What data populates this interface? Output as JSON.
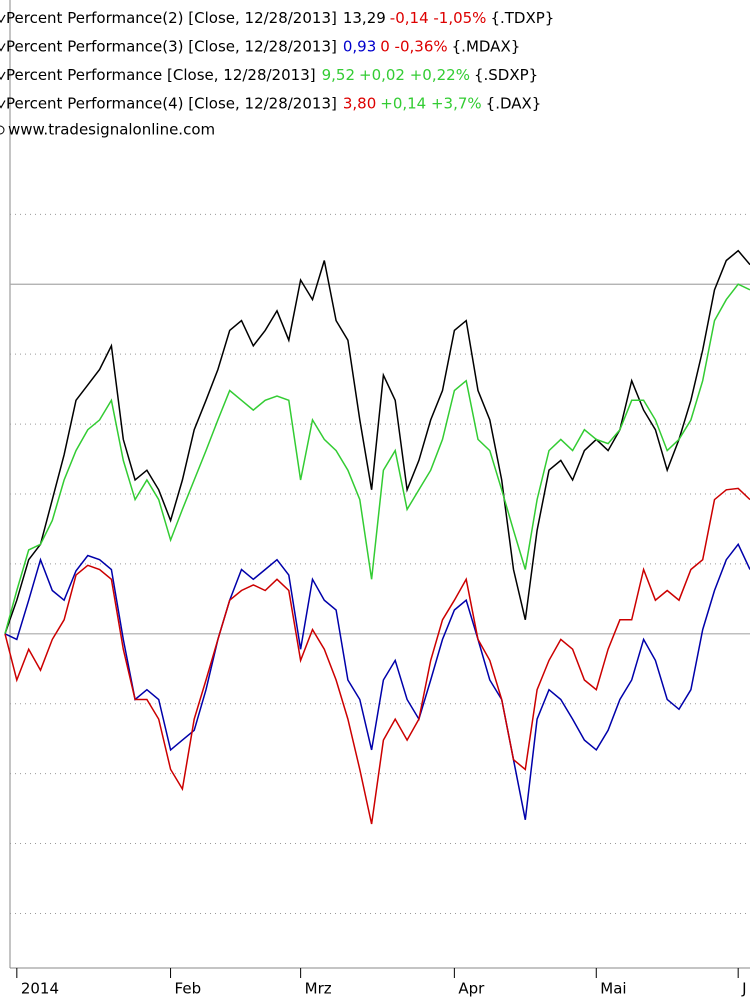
{
  "chart_data": {
    "type": "line",
    "categories": [
      null,
      "2014",
      null,
      null,
      null,
      null,
      null,
      null,
      null,
      null,
      null,
      null,
      null,
      null,
      "Feb",
      null,
      null,
      null,
      null,
      null,
      null,
      null,
      null,
      null,
      null,
      "Mrz",
      null,
      null,
      null,
      null,
      null,
      null,
      null,
      null,
      null,
      null,
      null,
      null,
      "Apr",
      null,
      null,
      null,
      null,
      null,
      null,
      null,
      null,
      null,
      null,
      null,
      "Mai",
      null,
      null,
      null,
      null,
      null,
      null,
      null,
      null,
      null,
      null,
      null,
      "J",
      null
    ],
    "series": [
      {
        "name": "Percent Performance(2) [Close, 12/28/2013]",
        "last": "13,29",
        "last_color": "#000000",
        "change": "-0,14 -1,05%",
        "change_color": "#dd0000",
        "symbol": "{.TDXP}",
        "color": "#000000",
        "values": [
          0,
          2.4,
          5.3,
          6.4,
          9.6,
          12.8,
          16.7,
          17.8,
          18.9,
          20.6,
          13.9,
          11.0,
          11.7,
          10.3,
          8.1,
          11.0,
          14.6,
          16.7,
          18.9,
          21.7,
          22.4,
          20.6,
          21.7,
          23.1,
          21.0,
          25.3,
          23.9,
          26.7,
          22.4,
          21.0,
          15.3,
          10.3,
          18.5,
          16.7,
          10.3,
          12.4,
          15.3,
          17.4,
          21.7,
          22.4,
          17.4,
          15.3,
          11.0,
          4.6,
          1.0,
          7.4,
          11.7,
          12.4,
          11.0,
          13.1,
          13.9,
          13.1,
          14.6,
          18.1,
          16.0,
          14.6,
          11.7,
          13.9,
          16.7,
          20.3,
          24.6,
          26.7,
          27.4,
          26.4
        ]
      },
      {
        "name": "Percent Performance(3) [Close, 12/28/2013]",
        "last": "0,93",
        "last_color": "#0000cc",
        "change": "0 -0,36%",
        "change_color": "#dd0000",
        "symbol": "{.MDAX}",
        "color": "#0000aa",
        "values": [
          0,
          -0.4,
          2.4,
          5.3,
          3.1,
          2.4,
          4.5,
          5.6,
          5.3,
          4.6,
          -0.4,
          -4.7,
          -4.0,
          -4.7,
          -8.3,
          -7.6,
          -6.9,
          -4.0,
          -0.4,
          2.4,
          4.6,
          3.9,
          4.6,
          5.3,
          4.2,
          -1.1,
          3.9,
          2.4,
          1.7,
          -3.3,
          -4.7,
          -8.3,
          -3.3,
          -1.9,
          -4.7,
          -6.1,
          -3.3,
          -0.4,
          1.7,
          2.4,
          -0.4,
          -3.3,
          -4.7,
          -9.0,
          -13.3,
          -6.1,
          -4.0,
          -4.7,
          -6.1,
          -7.6,
          -8.3,
          -6.9,
          -4.7,
          -3.3,
          -0.4,
          -1.9,
          -4.7,
          -5.4,
          -4.0,
          0.3,
          3.1,
          5.3,
          6.4,
          4.6
        ]
      },
      {
        "name": "Percent Performance [Close, 12/28/2013]",
        "last": "9,52",
        "last_color": "#33cc33",
        "change": "+0,02 +0,22%",
        "change_color": "#33cc33",
        "symbol": "{.SDXP}",
        "color": "#33cc33",
        "values": [
          0,
          3.1,
          6.0,
          6.4,
          8.1,
          11.0,
          13.1,
          14.6,
          15.3,
          16.7,
          12.4,
          9.6,
          11.0,
          9.6,
          6.7,
          8.9,
          11.0,
          13.1,
          15.3,
          17.4,
          16.7,
          16.0,
          16.7,
          17.0,
          16.7,
          11.0,
          15.3,
          13.9,
          13.1,
          11.7,
          9.6,
          3.9,
          11.7,
          13.1,
          8.9,
          10.3,
          11.7,
          13.9,
          17.4,
          18.1,
          13.9,
          13.1,
          10.3,
          7.4,
          4.6,
          9.6,
          13.1,
          13.9,
          13.1,
          14.6,
          13.9,
          13.6,
          14.6,
          16.7,
          16.7,
          15.3,
          13.1,
          13.9,
          15.3,
          18.1,
          22.4,
          23.9,
          25.0,
          24.6
        ]
      },
      {
        "name": "Percent Performance(4) [Close, 12/28/2013]",
        "last": "3,80",
        "last_color": "#dd0000",
        "change": "+0,14 +3,7%",
        "change_color": "#33cc33",
        "symbol": "{.DAX}",
        "color": "#cc0000",
        "values": [
          0,
          -3.3,
          -1.1,
          -2.6,
          -0.4,
          1.0,
          4.2,
          4.9,
          4.6,
          3.9,
          -1.1,
          -4.7,
          -4.7,
          -6.1,
          -9.7,
          -11.1,
          -6.1,
          -3.3,
          -0.4,
          2.4,
          3.1,
          3.5,
          3.1,
          3.9,
          3.1,
          -1.9,
          0.3,
          -1.1,
          -3.3,
          -6.1,
          -9.7,
          -13.6,
          -7.6,
          -6.1,
          -7.6,
          -6.1,
          -1.9,
          1.0,
          2.4,
          3.9,
          -0.4,
          -1.9,
          -4.7,
          -9.0,
          -9.7,
          -4.0,
          -1.9,
          -0.4,
          -1.1,
          -3.3,
          -4.0,
          -1.1,
          1.0,
          1.0,
          4.6,
          2.4,
          3.1,
          2.4,
          4.6,
          5.3,
          9.6,
          10.3,
          10.4,
          9.6
        ]
      }
    ],
    "source": "www.tradesignalonline.com",
    "ylim": [
      -23.9,
      34.6
    ],
    "yticks": [
      -20,
      -15,
      -10,
      -5,
      5,
      10,
      15,
      20,
      30
    ],
    "reference_lines": [
      0,
      25
    ],
    "grid": true
  }
}
